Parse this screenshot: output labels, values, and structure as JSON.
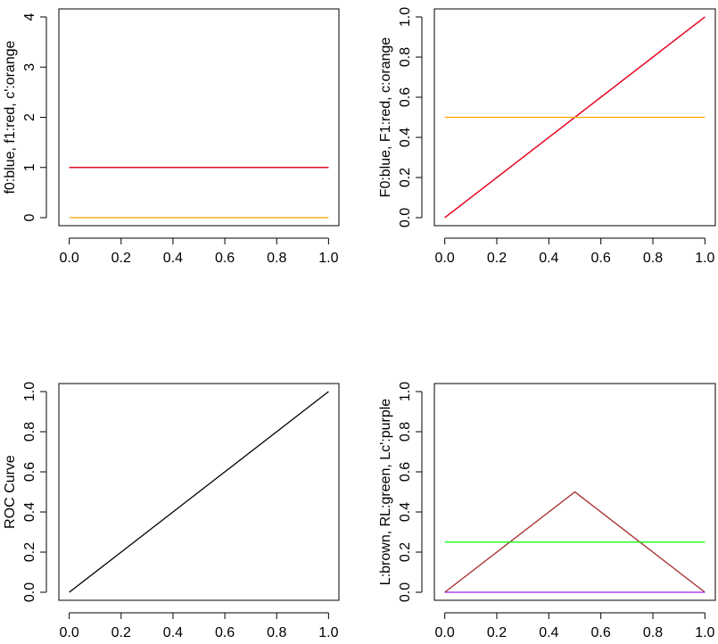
{
  "chart_data": [
    {
      "type": "line",
      "ylabel": "f0:blue, f1:red, c':orange",
      "xlim": [
        0,
        1
      ],
      "ylim": [
        0,
        4
      ],
      "xticks": [
        "0.0",
        "0.2",
        "0.4",
        "0.6",
        "0.8",
        "1.0"
      ],
      "yticks": [
        "0",
        "1",
        "2",
        "3",
        "4"
      ],
      "series": [
        {
          "color": "#0000ff",
          "x": [
            0,
            1
          ],
          "y": [
            1,
            1
          ]
        },
        {
          "color": "#ff0000",
          "x": [
            0,
            1
          ],
          "y": [
            1,
            1
          ]
        },
        {
          "color": "#ffa500",
          "x": [
            0,
            1
          ],
          "y": [
            0,
            0
          ]
        }
      ]
    },
    {
      "type": "line",
      "ylabel": "F0:blue, F1:red, c:orange",
      "xlim": [
        0,
        1
      ],
      "ylim": [
        0,
        1
      ],
      "xticks": [
        "0.0",
        "0.2",
        "0.4",
        "0.6",
        "0.8",
        "1.0"
      ],
      "yticks": [
        "0.0",
        "0.2",
        "0.4",
        "0.6",
        "0.8",
        "1.0"
      ],
      "series": [
        {
          "color": "#0000ff",
          "x": [
            0,
            1
          ],
          "y": [
            0,
            1
          ]
        },
        {
          "color": "#ff0000",
          "x": [
            0,
            1
          ],
          "y": [
            0,
            1
          ]
        },
        {
          "color": "#ffa500",
          "x": [
            0,
            1
          ],
          "y": [
            0.5,
            0.5
          ]
        }
      ]
    },
    {
      "type": "line",
      "ylabel": "ROC Curve",
      "xlim": [
        0,
        1
      ],
      "ylim": [
        0,
        1
      ],
      "xticks": [
        "0.0",
        "0.2",
        "0.4",
        "0.6",
        "0.8",
        "1.0"
      ],
      "yticks": [
        "0.0",
        "0.2",
        "0.4",
        "0.6",
        "0.8",
        "1.0"
      ],
      "series": [
        {
          "color": "#000000",
          "x": [
            0,
            1
          ],
          "y": [
            0,
            1
          ]
        }
      ]
    },
    {
      "type": "line",
      "ylabel": "L:brown, RL:green, Lc':purple",
      "xlim": [
        0,
        1
      ],
      "ylim": [
        0,
        1
      ],
      "xticks": [
        "0.0",
        "0.2",
        "0.4",
        "0.6",
        "0.8",
        "1.0"
      ],
      "yticks": [
        "0.0",
        "0.2",
        "0.4",
        "0.6",
        "0.8",
        "1.0"
      ],
      "series": [
        {
          "color": "#a52a2a",
          "x": [
            0,
            0.5,
            1
          ],
          "y": [
            0,
            0.5,
            0
          ]
        },
        {
          "color": "#00ff00",
          "x": [
            0,
            1
          ],
          "y": [
            0.25,
            0.25
          ]
        },
        {
          "color": "#a020f0",
          "x": [
            0,
            1
          ],
          "y": [
            0,
            0
          ]
        }
      ]
    }
  ]
}
